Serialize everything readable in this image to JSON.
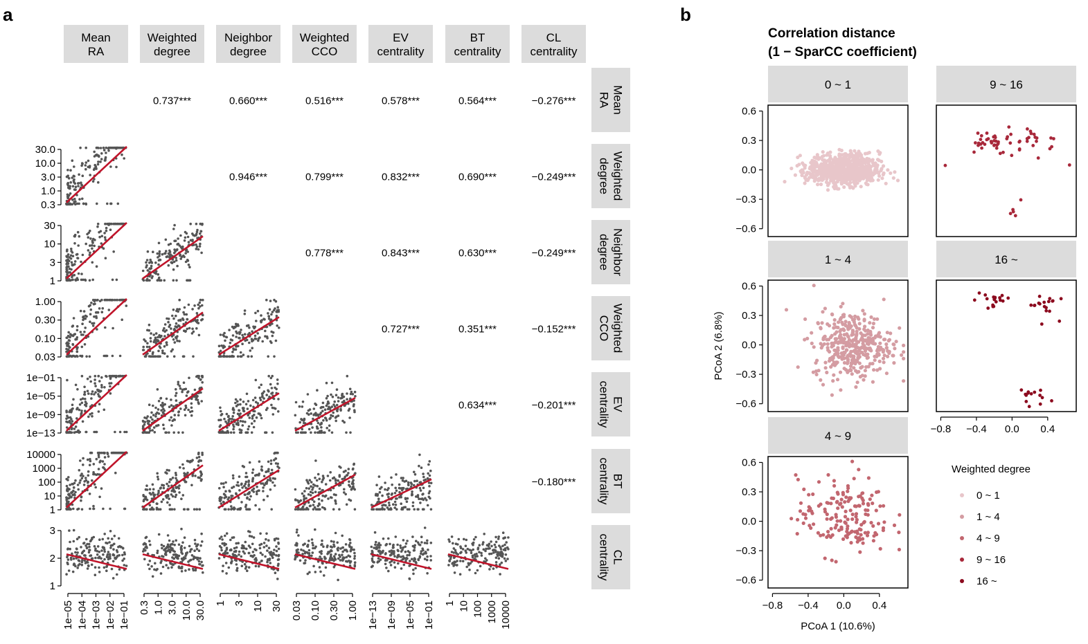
{
  "panels": {
    "a": "a",
    "b": "b"
  },
  "chart_data": [
    {
      "type": "scatter",
      "panel": "a",
      "variables": [
        "Mean RA",
        "Weighted degree",
        "Neighbor degree",
        "Weighted CCO",
        "EV centrality",
        "BT centrality",
        "CL centrality"
      ],
      "col_strips": [
        "Mean\nRA",
        "Weighted\ndegree",
        "Neighbor\ndegree",
        "Weighted\nCCO",
        "EV\ncentrality",
        "BT\ncentrality",
        "CL\ncentrality"
      ],
      "row_strips": [
        "Mean\nRA",
        "Weighted\ndegree",
        "Neighbor\ndegree",
        "Weighted\nCCO",
        "EV\ncentrality",
        "BT\ncentrality",
        "CL\ncentrality"
      ],
      "correlations": [
        {
          "row": 0,
          "col": 1,
          "label": "0.737***"
        },
        {
          "row": 0,
          "col": 2,
          "label": "0.660***"
        },
        {
          "row": 0,
          "col": 3,
          "label": "0.516***"
        },
        {
          "row": 0,
          "col": 4,
          "label": "0.578***"
        },
        {
          "row": 0,
          "col": 5,
          "label": "0.564***"
        },
        {
          "row": 0,
          "col": 6,
          "label": "−0.276***"
        },
        {
          "row": 1,
          "col": 2,
          "label": "0.946***"
        },
        {
          "row": 1,
          "col": 3,
          "label": "0.799***"
        },
        {
          "row": 1,
          "col": 4,
          "label": "0.832***"
        },
        {
          "row": 1,
          "col": 5,
          "label": "0.690***"
        },
        {
          "row": 1,
          "col": 6,
          "label": "−0.249***"
        },
        {
          "row": 2,
          "col": 3,
          "label": "0.778***"
        },
        {
          "row": 2,
          "col": 4,
          "label": "0.843***"
        },
        {
          "row": 2,
          "col": 5,
          "label": "0.630***"
        },
        {
          "row": 2,
          "col": 6,
          "label": "−0.249***"
        },
        {
          "row": 3,
          "col": 4,
          "label": "0.727***"
        },
        {
          "row": 3,
          "col": 5,
          "label": "0.351***"
        },
        {
          "row": 3,
          "col": 6,
          "label": "−0.152***"
        },
        {
          "row": 4,
          "col": 5,
          "label": "0.634***"
        },
        {
          "row": 4,
          "col": 6,
          "label": "−0.201***"
        },
        {
          "row": 5,
          "col": 6,
          "label": "−0.180***"
        }
      ],
      "y_ticks": [
        [
          "30.0",
          "10.0",
          "3.0",
          "1.0",
          "0.3"
        ],
        [
          "30",
          "10",
          "3",
          "1"
        ],
        [
          "1.00",
          "0.30",
          "0.10",
          "0.03"
        ],
        [
          "1e−01",
          "1e−05",
          "1e−09",
          "1e−13"
        ],
        [
          "10000",
          "1000",
          "100",
          "10",
          "1"
        ],
        [
          "3",
          "2",
          "1"
        ]
      ],
      "x_ticks": [
        [
          "1e−05",
          "1e−04",
          "1e−03",
          "1e−02",
          "1e−01"
        ],
        [
          "0.3",
          "1.0",
          "3.0",
          "10.0",
          "30.0"
        ],
        [
          "1",
          "3",
          "10",
          "30"
        ],
        [
          "0.03",
          "0.10",
          "0.30",
          "1.00"
        ],
        [
          "1e−13",
          "1e−09",
          "1e−05",
          "1e−01"
        ],
        [
          "1",
          "10",
          "100",
          "1000",
          "10000"
        ]
      ],
      "point_color": "#555555",
      "fit_color": "#c0142a",
      "strip_color": "#dcdcdc"
    },
    {
      "type": "scatter",
      "panel": "b",
      "title": "Correlation distance\n(1 − SparCC coefficient)",
      "xlabel": "PCoA 1 (10.6%)",
      "ylabel": "PCoA 2 (6.8%)",
      "xlim": [
        -0.85,
        0.72
      ],
      "ylim": [
        -0.68,
        0.66
      ],
      "x_ticks": [
        "−0.8",
        "−0.4",
        "0.0",
        "0.4"
      ],
      "y_ticks": [
        "0.6",
        "0.3",
        "0.0",
        "−0.3",
        "−0.6"
      ],
      "x_tick_values": [
        -0.8,
        -0.4,
        0.0,
        0.4
      ],
      "y_tick_values": [
        0.6,
        0.3,
        0.0,
        -0.3,
        -0.6
      ],
      "facets": [
        {
          "label": "0 ~ 1",
          "color": "#e8c6ca",
          "n_points": 800,
          "center": [
            0.0,
            0.0
          ],
          "spread": [
            0.2,
            0.08
          ],
          "shape": "blob"
        },
        {
          "label": "9 ~ 16",
          "color": "#a8283a",
          "clusters": [
            [
              -0.28,
              0.3,
              0.13,
              0.07,
              30
            ],
            [
              0.25,
              0.3,
              0.15,
              0.07,
              25
            ],
            [
              0.02,
              -0.45,
              0.03,
              0.03,
              4
            ],
            [
              -0.75,
              0.05,
              0.01,
              0.01,
              1
            ],
            [
              0.1,
              -0.3,
              0.01,
              0.01,
              1
            ],
            [
              0.65,
              0.05,
              0.01,
              0.01,
              1
            ]
          ]
        },
        {
          "label": "1 ~ 4",
          "color": "#d49ca2",
          "n_points": 380,
          "center": [
            0.1,
            0.0
          ],
          "spread": [
            0.22,
            0.17
          ],
          "shape": "blob"
        },
        {
          "label": "16 ~",
          "color": "#8c0a1e",
          "clusters": [
            [
              -0.22,
              0.45,
              0.1,
              0.06,
              18
            ],
            [
              0.35,
              0.42,
              0.08,
              0.07,
              18
            ],
            [
              0.18,
              -0.52,
              0.08,
              0.05,
              14
            ]
          ]
        },
        {
          "label": "4 ~ 9",
          "color": "#c2666f",
          "n_points": 170,
          "center": [
            0.0,
            0.05
          ],
          "spread": [
            0.26,
            0.2
          ],
          "shape": "blob"
        }
      ],
      "legend": {
        "title": "Weighted degree",
        "entries": [
          {
            "label": "0 ~ 1",
            "color": "#e8c6ca"
          },
          {
            "label": "1 ~ 4",
            "color": "#d49ca2"
          },
          {
            "label": "4 ~ 9",
            "color": "#c2666f"
          },
          {
            "label": "9 ~ 16",
            "color": "#a8283a"
          },
          {
            "label": "16 ~",
            "color": "#8c0a1e"
          }
        ]
      }
    }
  ]
}
